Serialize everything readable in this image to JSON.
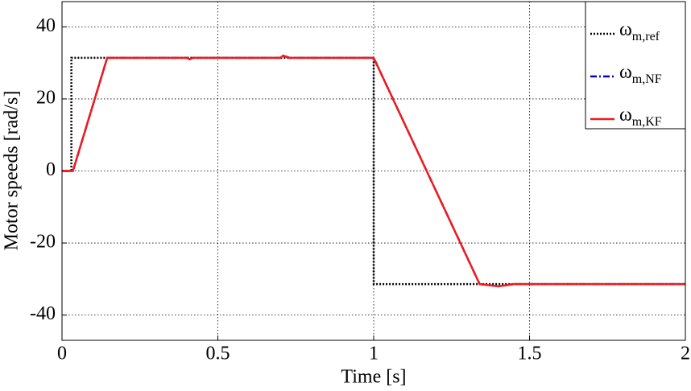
{
  "chart_data": {
    "type": "line",
    "x_label": "Time [s]",
    "y_label": "Motor speeds [rad/s]",
    "xlim": [
      0,
      2
    ],
    "ylim": [
      -47,
      47
    ],
    "xticks": [
      0,
      0.5,
      1,
      1.5,
      2
    ],
    "yticks": [
      -40,
      -20,
      0,
      20,
      40
    ],
    "grid": true,
    "legend": "upper right",
    "series": [
      {
        "name": "ω",
        "subscript": "m,ref",
        "color": "#000000",
        "style": "dotted",
        "x": [
          0,
          0.03,
          0.03,
          1,
          1,
          2
        ],
        "values": [
          0,
          0,
          31.4,
          31.4,
          -31.4,
          -31.4
        ]
      },
      {
        "name": "ω",
        "subscript": "m,NF",
        "color": "#0000cc",
        "style": "dashdot",
        "x": [
          0,
          0.035,
          0.145,
          0.4,
          0.41,
          0.42,
          0.7,
          0.71,
          0.73,
          1,
          1.34,
          1.4,
          1.45,
          2
        ],
        "values": [
          0,
          0,
          31.4,
          31.4,
          31.0,
          31.4,
          31.4,
          32.0,
          31.4,
          31.4,
          -31.4,
          -32.0,
          -31.4,
          -31.4
        ]
      },
      {
        "name": "ω",
        "subscript": "m,KF",
        "color": "#ee1c1c",
        "style": "solid",
        "x": [
          0,
          0.035,
          0.145,
          0.4,
          0.41,
          0.42,
          0.7,
          0.71,
          0.73,
          1,
          1.34,
          1.4,
          1.45,
          2
        ],
        "values": [
          0,
          0,
          31.4,
          31.4,
          31.0,
          31.4,
          31.4,
          32.0,
          31.4,
          31.4,
          -31.4,
          -32.0,
          -31.4,
          -31.4
        ]
      }
    ]
  }
}
